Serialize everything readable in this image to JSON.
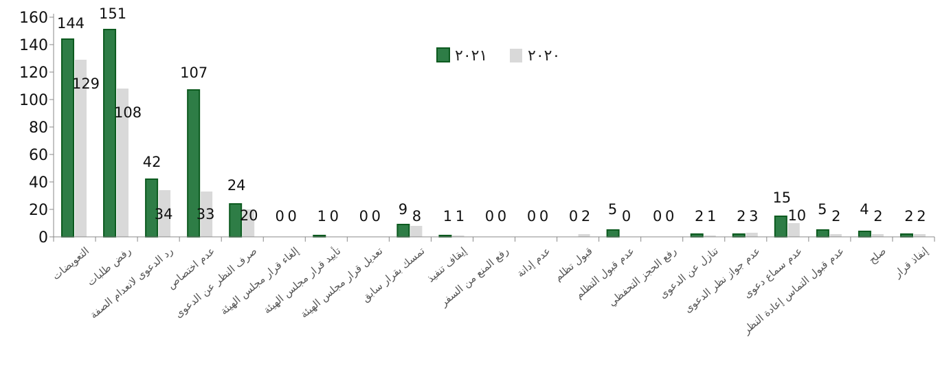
{
  "chart_data": {
    "type": "bar",
    "title": "",
    "xlabel": "",
    "ylabel": "",
    "ylim": [
      0,
      160
    ],
    "yticks": [
      0,
      20,
      40,
      60,
      80,
      100,
      120,
      140,
      160
    ],
    "grid": false,
    "legend_position": "top-right",
    "colors": {
      "series_2021": "#2e7d46",
      "series_2021_stroke": "#0c5a1f",
      "series_2020": "#d9d9d9",
      "axis": "#888888"
    },
    "categories": [
      "التعويضات",
      "رفض طلبات",
      "رد الدعوى لانعدام الصفة",
      "عدم اختصاص",
      "صرف النظر عن الدعوى",
      "إلغاء قرار مجلس الهيئة",
      "تأييد قرار مجلس الهيئة",
      "تعديل قرار مجلس الهيئة",
      "تمسك بقرار سابق",
      "إيقاف تنفيذ",
      "رفع المنع من السفر",
      "عدم إدانة",
      "قبول تظلم",
      "عدم قبول التظلم",
      "رفع الحجز التحفظي",
      "تنازل عن الدعوى",
      "عدم جواز نظر الدعوى",
      "عدم سماع دعوى",
      "عدم قبول التماس إعادة النظر",
      "صلح",
      "إنفاذ قرار"
    ],
    "series": [
      {
        "name": "٢٠٢١",
        "values": [
          144,
          151,
          42,
          107,
          24,
          0,
          1,
          0,
          9,
          1,
          0,
          0,
          0,
          5,
          0,
          2,
          2,
          15,
          5,
          4,
          2
        ]
      },
      {
        "name": "٢٠٢٠",
        "values": [
          129,
          108,
          34,
          33,
          20,
          0,
          0,
          0,
          8,
          1,
          0,
          0,
          2,
          0,
          0,
          1,
          3,
          10,
          2,
          2,
          2
        ]
      }
    ]
  }
}
